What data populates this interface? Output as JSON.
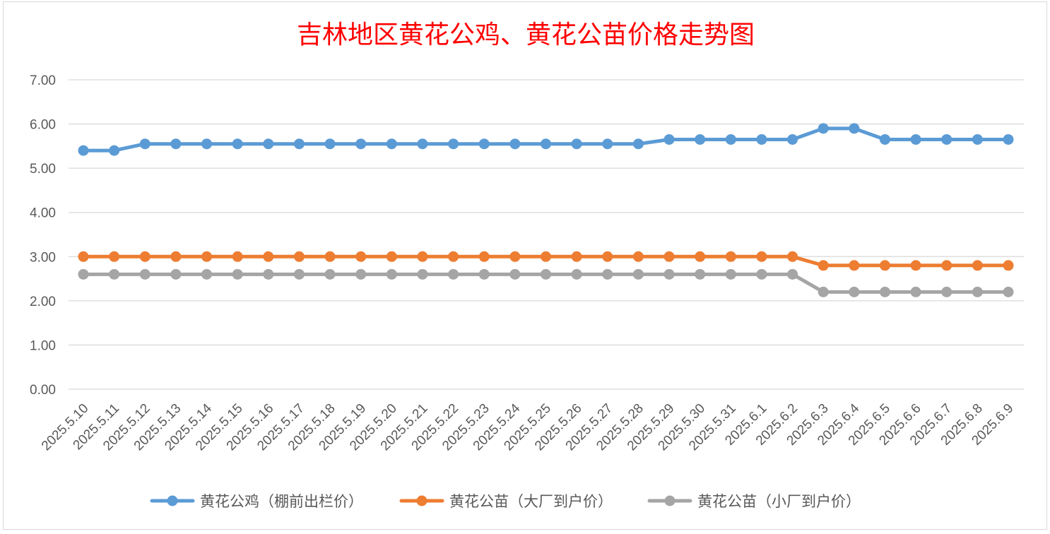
{
  "chart_data": {
    "type": "line",
    "title": "吉林地区黄花公鸡、黄花公苗价格走势图",
    "categories": [
      "2025.5.10",
      "2025.5.11",
      "2025.5.12",
      "2025.5.13",
      "2025.5.14",
      "2025.5.15",
      "2025.5.16",
      "2025.5.17",
      "2025.5.18",
      "2025.5.19",
      "2025.5.20",
      "2025.5.21",
      "2025.5.22",
      "2025.5.23",
      "2025.5.24",
      "2025.5.25",
      "2025.5.26",
      "2025.5.27",
      "2025.5.28",
      "2025.5.29",
      "2025.5.30",
      "2025.5.31",
      "2025.6.1",
      "2025.6.2",
      "2025.6.3",
      "2025.6.4",
      "2025.6.5",
      "2025.6.6",
      "2025.6.7",
      "2025.6.8",
      "2025.6.9"
    ],
    "yticks": [
      "0.00",
      "1.00",
      "2.00",
      "3.00",
      "4.00",
      "5.00",
      "6.00",
      "7.00"
    ],
    "ylim": [
      0,
      7
    ],
    "grid": true,
    "legend_position": "bottom",
    "series": [
      {
        "name": "黄花公鸡（棚前出栏价）",
        "color": "#5b9bd5",
        "values": [
          5.4,
          5.4,
          5.55,
          5.55,
          5.55,
          5.55,
          5.55,
          5.55,
          5.55,
          5.55,
          5.55,
          5.55,
          5.55,
          5.55,
          5.55,
          5.55,
          5.55,
          5.55,
          5.55,
          5.65,
          5.65,
          5.65,
          5.65,
          5.65,
          5.9,
          5.9,
          5.65,
          5.65,
          5.65,
          5.65,
          5.65
        ]
      },
      {
        "name": "黄花公苗（大厂到户价）",
        "color": "#ed7d31",
        "values": [
          3.0,
          3.0,
          3.0,
          3.0,
          3.0,
          3.0,
          3.0,
          3.0,
          3.0,
          3.0,
          3.0,
          3.0,
          3.0,
          3.0,
          3.0,
          3.0,
          3.0,
          3.0,
          3.0,
          3.0,
          3.0,
          3.0,
          3.0,
          3.0,
          2.8,
          2.8,
          2.8,
          2.8,
          2.8,
          2.8,
          2.8
        ]
      },
      {
        "name": "黄花公苗（小厂到户价）",
        "color": "#a5a5a5",
        "values": [
          2.6,
          2.6,
          2.6,
          2.6,
          2.6,
          2.6,
          2.6,
          2.6,
          2.6,
          2.6,
          2.6,
          2.6,
          2.6,
          2.6,
          2.6,
          2.6,
          2.6,
          2.6,
          2.6,
          2.6,
          2.6,
          2.6,
          2.6,
          2.6,
          2.2,
          2.2,
          2.2,
          2.2,
          2.2,
          2.2,
          2.2
        ]
      }
    ]
  }
}
